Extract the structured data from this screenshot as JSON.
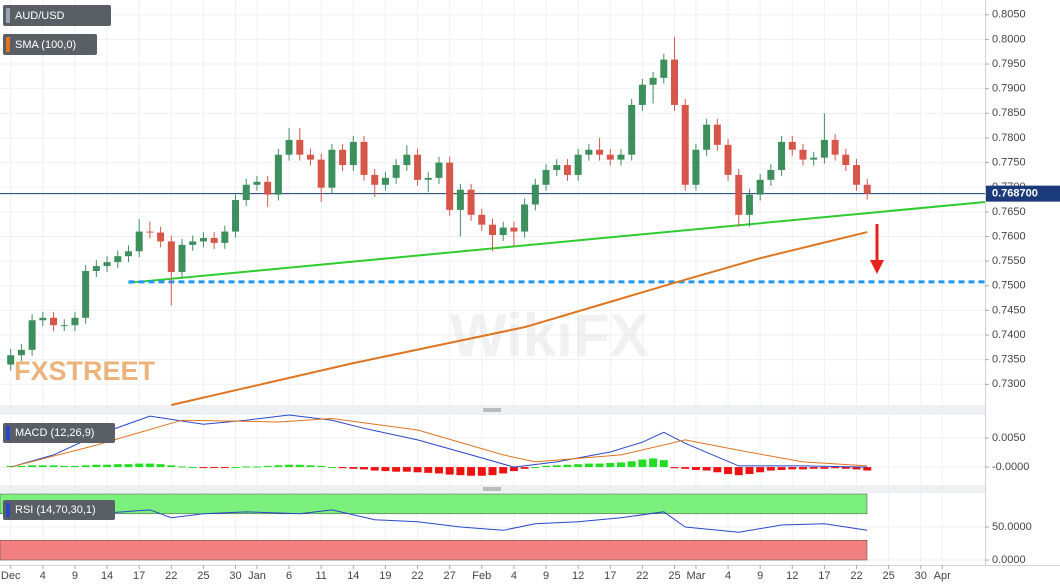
{
  "chart_data": [
    {
      "type": "candlestick",
      "title": "AUD/USD",
      "up_color": "#3d8f5e",
      "down_color": "#d6574a",
      "xlim": [
        -1,
        91
      ],
      "ylim": [
        0.7258,
        0.808
      ],
      "yticks": [
        {
          "value": 0.805,
          "label": "0.8050"
        },
        {
          "value": 0.8,
          "label": "0.8000"
        },
        {
          "value": 0.795,
          "label": "0.7950"
        },
        {
          "value": 0.79,
          "label": "0.7900"
        },
        {
          "value": 0.785,
          "label": "0.7850"
        },
        {
          "value": 0.78,
          "label": "0.7800"
        },
        {
          "value": 0.775,
          "label": "0.7750"
        },
        {
          "value": 0.77,
          "label": "0.7700"
        },
        {
          "value": 0.765,
          "label": "0.7650"
        },
        {
          "value": 0.76,
          "label": "0.7600"
        },
        {
          "value": 0.755,
          "label": "0.7550"
        },
        {
          "value": 0.75,
          "label": "0.7500"
        },
        {
          "value": 0.745,
          "label": "0.7450"
        },
        {
          "value": 0.74,
          "label": "0.7400"
        },
        {
          "value": 0.735,
          "label": "0.7350"
        },
        {
          "value": 0.73,
          "label": "0.7300"
        }
      ],
      "ohlc": [
        [
          0.734,
          0.7372,
          0.7328,
          0.7359
        ],
        [
          0.7359,
          0.7382,
          0.7347,
          0.737
        ],
        [
          0.737,
          0.7442,
          0.7358,
          0.743
        ],
        [
          0.743,
          0.7447,
          0.7418,
          0.7435
        ],
        [
          0.7435,
          0.7447,
          0.7408,
          0.742
        ],
        [
          0.742,
          0.7432,
          0.7408,
          0.742
        ],
        [
          0.742,
          0.7447,
          0.7408,
          0.7435
        ],
        [
          0.7435,
          0.7542,
          0.7423,
          0.753
        ],
        [
          0.753,
          0.7552,
          0.7518,
          0.754
        ],
        [
          0.754,
          0.756,
          0.7528,
          0.7548
        ],
        [
          0.7548,
          0.7572,
          0.7536,
          0.756
        ],
        [
          0.756,
          0.7582,
          0.7548,
          0.757
        ],
        [
          0.757,
          0.7635,
          0.7558,
          0.761
        ],
        [
          0.761,
          0.763,
          0.7596,
          0.7608
        ],
        [
          0.7608,
          0.762,
          0.7578,
          0.759
        ],
        [
          0.759,
          0.7602,
          0.746,
          0.7528
        ],
        [
          0.7528,
          0.7595,
          0.7516,
          0.7583
        ],
        [
          0.7583,
          0.7602,
          0.7571,
          0.759
        ],
        [
          0.759,
          0.7609,
          0.7578,
          0.7597
        ],
        [
          0.7597,
          0.7609,
          0.7575,
          0.7587
        ],
        [
          0.7587,
          0.7622,
          0.7575,
          0.761
        ],
        [
          0.761,
          0.7686,
          0.7598,
          0.7674
        ],
        [
          0.7674,
          0.7717,
          0.7662,
          0.7705
        ],
        [
          0.7705,
          0.7723,
          0.7693,
          0.7711
        ],
        [
          0.7711,
          0.7723,
          0.766,
          0.7685
        ],
        [
          0.7685,
          0.7778,
          0.7673,
          0.7766
        ],
        [
          0.7766,
          0.782,
          0.7754,
          0.7796
        ],
        [
          0.7796,
          0.782,
          0.7754,
          0.7766
        ],
        [
          0.7766,
          0.7778,
          0.7744,
          0.7756
        ],
        [
          0.7756,
          0.7768,
          0.767,
          0.7699
        ],
        [
          0.7699,
          0.7788,
          0.7687,
          0.7776
        ],
        [
          0.7776,
          0.7788,
          0.7733,
          0.7745
        ],
        [
          0.7745,
          0.7804,
          0.7733,
          0.7792
        ],
        [
          0.7792,
          0.7804,
          0.7713,
          0.7725
        ],
        [
          0.7725,
          0.7737,
          0.768,
          0.7705
        ],
        [
          0.7705,
          0.7731,
          0.7693,
          0.7719
        ],
        [
          0.7719,
          0.7757,
          0.7707,
          0.7745
        ],
        [
          0.7745,
          0.7785,
          0.7733,
          0.7766
        ],
        [
          0.7766,
          0.7778,
          0.7703,
          0.7715
        ],
        [
          0.7715,
          0.7731,
          0.769,
          0.7719
        ],
        [
          0.7719,
          0.7762,
          0.7707,
          0.775
        ],
        [
          0.775,
          0.7762,
          0.7642,
          0.7654
        ],
        [
          0.7654,
          0.7707,
          0.76,
          0.7695
        ],
        [
          0.7695,
          0.7707,
          0.7632,
          0.7644
        ],
        [
          0.7644,
          0.7656,
          0.7612,
          0.7624
        ],
        [
          0.7624,
          0.7636,
          0.757,
          0.7603
        ],
        [
          0.7603,
          0.763,
          0.7591,
          0.7618
        ],
        [
          0.7618,
          0.763,
          0.758,
          0.761
        ],
        [
          0.761,
          0.7677,
          0.7598,
          0.7665
        ],
        [
          0.7665,
          0.7717,
          0.7653,
          0.7705
        ],
        [
          0.7705,
          0.7747,
          0.7693,
          0.7735
        ],
        [
          0.7735,
          0.7757,
          0.7723,
          0.7745
        ],
        [
          0.7745,
          0.7757,
          0.7713,
          0.7725
        ],
        [
          0.7725,
          0.7778,
          0.7713,
          0.7766
        ],
        [
          0.7766,
          0.7788,
          0.7754,
          0.7776
        ],
        [
          0.7776,
          0.78,
          0.7754,
          0.7766
        ],
        [
          0.7766,
          0.7778,
          0.7744,
          0.7756
        ],
        [
          0.7756,
          0.7778,
          0.7744,
          0.7766
        ],
        [
          0.7766,
          0.7879,
          0.7754,
          0.7867
        ],
        [
          0.7867,
          0.792,
          0.7855,
          0.7908
        ],
        [
          0.7908,
          0.7934,
          0.787,
          0.7922
        ],
        [
          0.7922,
          0.7971,
          0.791,
          0.7959
        ],
        [
          0.7959,
          0.8005,
          0.7855,
          0.7867
        ],
        [
          0.7867,
          0.7879,
          0.7693,
          0.7705
        ],
        [
          0.7705,
          0.7788,
          0.7693,
          0.7776
        ],
        [
          0.7776,
          0.7839,
          0.7764,
          0.7827
        ],
        [
          0.7827,
          0.7839,
          0.7774,
          0.7786
        ],
        [
          0.7786,
          0.7798,
          0.7713,
          0.7725
        ],
        [
          0.7725,
          0.7737,
          0.762,
          0.7644
        ],
        [
          0.7644,
          0.7697,
          0.762,
          0.7685
        ],
        [
          0.7685,
          0.7727,
          0.7673,
          0.7715
        ],
        [
          0.7715,
          0.7747,
          0.7703,
          0.7735
        ],
        [
          0.7735,
          0.7804,
          0.7723,
          0.7792
        ],
        [
          0.7792,
          0.7804,
          0.7764,
          0.7776
        ],
        [
          0.7776,
          0.7788,
          0.7744,
          0.7756
        ],
        [
          0.7756,
          0.7772,
          0.7744,
          0.776
        ],
        [
          0.776,
          0.785,
          0.7748,
          0.7796
        ],
        [
          0.7796,
          0.7808,
          0.7754,
          0.7766
        ],
        [
          0.7766,
          0.7778,
          0.7733,
          0.7745
        ],
        [
          0.7745,
          0.7757,
          0.7693,
          0.7705
        ],
        [
          0.7705,
          0.7717,
          0.7675,
          0.7687
        ]
      ],
      "series": [
        {
          "name": "SMA (100,0)",
          "color": "#e0751f",
          "x": [
            15,
            23,
            32,
            39,
            48,
            55,
            62,
            70,
            80
          ],
          "values": [
            0.7258,
            0.7298,
            0.7343,
            0.7375,
            0.7416,
            0.7461,
            0.7506,
            0.7556,
            0.7609
          ]
        }
      ],
      "price_line": {
        "value": 0.7687,
        "label": "0.768700",
        "color": "#1a3a7a"
      },
      "trendline": {
        "points": [
          [
            11,
            0.7506
          ],
          [
            91,
            0.767
          ]
        ],
        "color": "#2ecc2e"
      },
      "support": {
        "value": 0.7508,
        "from": 11,
        "color": "#2196f3"
      },
      "watermarks": [
        "FXSTREET",
        "WikiFX"
      ]
    },
    {
      "type": "macd",
      "title": "MACD (12,26,9)",
      "xlim": [
        -1,
        91
      ],
      "ylim": [
        -0.0031,
        0.009
      ],
      "yticks": [
        {
          "value": 0.005,
          "label": "0.0050"
        },
        {
          "value": 0,
          "label": "-0.0000"
        }
      ],
      "histogram": {
        "up_color": "#22dd22",
        "down_color": "#ee1111",
        "values": [
          0.0002,
          0.0002,
          0.0003,
          0.0003,
          0.0003,
          0.0002,
          0.0002,
          0.0003,
          0.0004,
          0.0004,
          0.0005,
          0.0005,
          0.0006,
          0.0006,
          0.0005,
          0.0003,
          0.0001,
          0,
          -0.0001,
          -0.0001,
          -0.0001,
          0,
          0.0001,
          0.0001,
          0.0002,
          0.0003,
          0.0004,
          0.0004,
          0.0003,
          0.0002,
          0,
          -0.0002,
          -0.0003,
          -0.0004,
          -0.0006,
          -0.0007,
          -0.0008,
          -0.0008,
          -0.0009,
          -0.001,
          -0.0011,
          -0.0013,
          -0.0014,
          -0.0015,
          -0.0015,
          -0.0014,
          -0.0011,
          -0.0007,
          -0.0003,
          0,
          0.0002,
          0.0003,
          0.0004,
          0.0005,
          0.0006,
          0.0006,
          0.0007,
          0.0008,
          0.001,
          0.0013,
          0.0015,
          0.0012,
          -0.0002,
          -0.0003,
          -0.0005,
          -0.0006,
          -0.0009,
          -0.0012,
          -0.0014,
          -0.0012,
          -0.0009,
          -0.0006,
          -0.0005,
          -0.0004,
          -0.0004,
          -0.0003,
          -0.0003,
          -0.0002,
          -0.0003,
          -0.0004,
          -0.0006
        ]
      },
      "series": [
        {
          "color": "#2948c8",
          "x": [
            0,
            4,
            8,
            13,
            18,
            22,
            26,
            30,
            33,
            38,
            43,
            47,
            51,
            56,
            59,
            61,
            63,
            68,
            74,
            80
          ],
          "values": [
            0,
            0.0021,
            0.0055,
            0.0088,
            0.0074,
            0.0081,
            0.009,
            0.0081,
            0.0067,
            0.0047,
            0.0021,
            0,
            0.0009,
            0.0026,
            0.0043,
            0.006,
            0.0041,
            0.0002,
            0.0002,
            0
          ]
        },
        {
          "color": "#e0751f",
          "x": [
            0,
            8,
            16,
            25,
            30,
            38,
            46,
            49,
            57,
            63,
            68,
            74,
            80
          ],
          "values": [
            0,
            0.0038,
            0.0081,
            0.0078,
            0.0084,
            0.0064,
            0.0021,
            0.0009,
            0.0021,
            0.0047,
            0.0029,
            0.0009,
            0.0002
          ]
        }
      ]
    },
    {
      "type": "rsi",
      "title": "RSI (14,70,30,1)",
      "xlim": [
        -1,
        91
      ],
      "ylim": [
        -3,
        101.5
      ],
      "yticks": [
        {
          "value": 50,
          "label": "50.0000"
        },
        {
          "value": 0,
          "label": "0.0000"
        }
      ],
      "bands": [
        {
          "from": 70,
          "to": 100,
          "color": "#7cf07c"
        },
        {
          "from": 0,
          "to": 30,
          "color": "#f28080"
        }
      ],
      "series": [
        {
          "color": "#2948c8",
          "x": [
            0,
            4,
            8,
            13,
            15,
            18,
            22,
            27,
            30,
            34,
            38,
            42,
            46,
            49,
            53,
            57,
            61,
            63,
            68,
            72,
            76,
            80
          ],
          "values": [
            76,
            79,
            70,
            76,
            64,
            70,
            73,
            70,
            76,
            61,
            58,
            50,
            45,
            55,
            58,
            64,
            73,
            50,
            42,
            53,
            55,
            45
          ]
        }
      ],
      "xticks": [
        {
          "value": 0,
          "label": "Dec"
        },
        {
          "value": 3,
          "label": "4"
        },
        {
          "value": 6,
          "label": "9"
        },
        {
          "value": 9,
          "label": "14"
        },
        {
          "value": 12,
          "label": "17"
        },
        {
          "value": 15,
          "label": "22"
        },
        {
          "value": 18,
          "label": "25"
        },
        {
          "value": 21,
          "label": "30"
        },
        {
          "value": 23,
          "label": "Jan"
        },
        {
          "value": 26,
          "label": "6"
        },
        {
          "value": 29,
          "label": "11"
        },
        {
          "value": 32,
          "label": "14"
        },
        {
          "value": 35,
          "label": "19"
        },
        {
          "value": 38,
          "label": "22"
        },
        {
          "value": 41,
          "label": "27"
        },
        {
          "value": 44,
          "label": "Feb"
        },
        {
          "value": 47,
          "label": "4"
        },
        {
          "value": 50,
          "label": "9"
        },
        {
          "value": 53,
          "label": "12"
        },
        {
          "value": 56,
          "label": "17"
        },
        {
          "value": 59,
          "label": "22"
        },
        {
          "value": 62,
          "label": "25"
        },
        {
          "value": 64,
          "label": "Mar"
        },
        {
          "value": 67,
          "label": "4"
        },
        {
          "value": 70,
          "label": "9"
        },
        {
          "value": 73,
          "label": "12"
        },
        {
          "value": 76,
          "label": "17"
        },
        {
          "value": 79,
          "label": "22"
        },
        {
          "value": 82,
          "label": "25"
        },
        {
          "value": 85,
          "label": "30"
        },
        {
          "value": 87,
          "label": "Apr"
        }
      ]
    }
  ]
}
